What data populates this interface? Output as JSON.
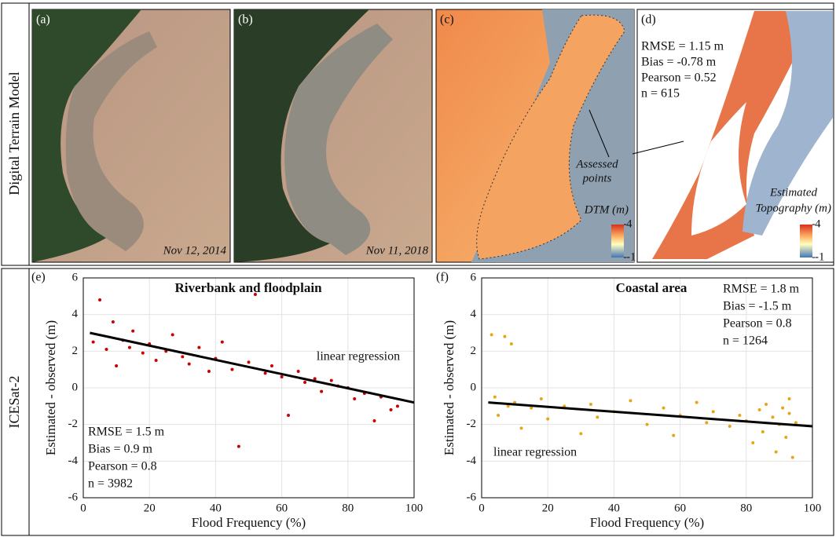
{
  "row_labels": [
    "Digital Terrain Model",
    "ICESat-2"
  ],
  "panels": [
    {
      "label": "(a)",
      "date": "Nov 12, 2014"
    },
    {
      "label": "(b)",
      "date": "Nov 11, 2018"
    },
    {
      "label": "(c)",
      "annotation": [
        "Assessed",
        "points"
      ],
      "colorbar": {
        "title": [
          "DTM (m)"
        ],
        "ylim": [
          -1,
          4
        ],
        "yticks": [
          -1,
          4
        ]
      }
    },
    {
      "label": "(d)",
      "stats": [
        "RMSE = 1.15 m",
        "Bias = -0.78 m",
        "Pearson = 0.52",
        "n = 615"
      ],
      "colorbar": {
        "title": [
          "Estimated",
          "Topography (m)"
        ],
        "ylim": [
          -1,
          4
        ],
        "yticks": [
          -1,
          4
        ]
      }
    }
  ],
  "chart_data": [
    {
      "type": "scatter",
      "panel_label": "(e)",
      "title": "Riverbank and floodplain",
      "x_label": "Flood Frequency (%)",
      "y_label": "Estimated - observed (m)",
      "color": "#cc0000",
      "grid": true,
      "xlim": [
        0,
        100
      ],
      "xticks": [
        0,
        20,
        40,
        60,
        80,
        100
      ],
      "ylim": [
        -6,
        6
      ],
      "yticks": [
        -6,
        -4,
        -2,
        0,
        2,
        4,
        6
      ],
      "x": [
        3,
        5,
        7,
        9,
        10,
        12,
        14,
        15,
        18,
        20,
        22,
        25,
        27,
        30,
        32,
        35,
        38,
        40,
        42,
        45,
        47,
        50,
        52,
        55,
        57,
        60,
        62,
        65,
        67,
        70,
        72,
        75,
        77,
        80,
        82,
        85,
        88,
        90,
        93,
        95
      ],
      "y": [
        2.5,
        4.8,
        2.1,
        3.6,
        1.2,
        2.6,
        2.2,
        3.1,
        1.9,
        2.4,
        1.5,
        2.0,
        2.9,
        1.7,
        1.3,
        2.2,
        0.9,
        1.6,
        2.5,
        1.0,
        -3.2,
        1.4,
        5.1,
        0.8,
        1.2,
        0.6,
        -1.5,
        0.9,
        0.3,
        0.5,
        -0.2,
        0.4,
        0.1,
        0.0,
        -0.6,
        -0.3,
        -1.8,
        -0.5,
        -1.2,
        -1.0
      ],
      "fit": {
        "x": [
          2,
          100
        ],
        "y": [
          3.0,
          -0.8
        ]
      },
      "annotation": "linear regression",
      "stats": [
        "RMSE = 1.5 m",
        "Bias = 0.9 m",
        "Pearson = 0.8",
        "n = 3982"
      ]
    },
    {
      "type": "scatter",
      "panel_label": "(f)",
      "title": "Coastal area",
      "x_label": "Flood Frequency (%)",
      "y_label": "Estimated - observed (m)",
      "color": "#e8a517",
      "grid": true,
      "xlim": [
        0,
        100
      ],
      "xticks": [
        0,
        20,
        40,
        60,
        80,
        100
      ],
      "ylim": [
        -6,
        6
      ],
      "yticks": [
        -6,
        -4,
        -2,
        0,
        2,
        4,
        6
      ],
      "x": [
        3,
        4,
        5,
        7,
        8,
        9,
        10,
        12,
        15,
        18,
        20,
        25,
        30,
        33,
        35,
        40,
        45,
        50,
        55,
        58,
        60,
        65,
        68,
        70,
        75,
        78,
        80,
        82,
        84,
        85,
        86,
        88,
        89,
        90,
        91,
        92,
        93,
        93,
        94,
        95
      ],
      "y": [
        2.9,
        -0.5,
        -1.5,
        2.8,
        -1.0,
        2.4,
        -0.8,
        -2.2,
        -1.1,
        -0.6,
        -1.7,
        -1.0,
        -2.5,
        -0.9,
        -1.6,
        -1.3,
        -0.7,
        -2.0,
        -1.1,
        -2.6,
        -1.5,
        -0.8,
        -1.9,
        -1.3,
        -2.1,
        -1.5,
        -1.8,
        -3.0,
        -1.2,
        -2.4,
        -0.9,
        -1.6,
        -3.5,
        -2.0,
        -1.1,
        -2.7,
        -1.4,
        -0.6,
        -3.8,
        -1.9
      ],
      "fit": {
        "x": [
          2,
          100
        ],
        "y": [
          -0.8,
          -2.1
        ]
      },
      "annotation": "linear regression",
      "stats": [
        "RMSE = 1.8 m",
        "Bias = -1.5 m",
        "Pearson = 0.8",
        "n = 1264"
      ]
    }
  ]
}
